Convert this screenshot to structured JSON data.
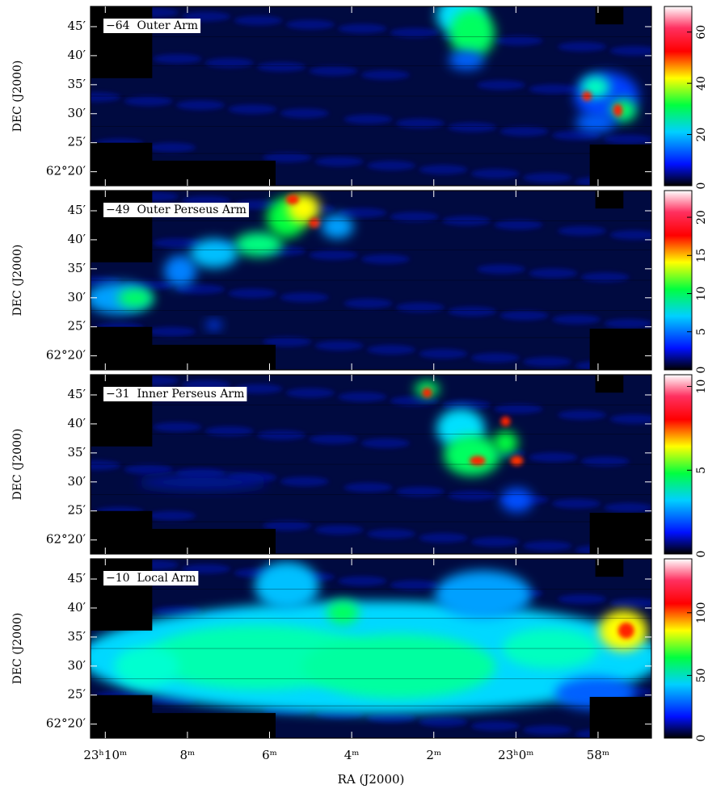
{
  "chart_data": [
    {
      "type": "heatmap",
      "annotation": "−64  Outer Arm",
      "ylabel": "DEC (J2000)",
      "xlim": [
        1390.36,
        1376.7
      ],
      "ylim": [
        62.293,
        62.808
      ],
      "yticks": [
        {
          "value": 62.3333,
          "label": "62°20′"
        },
        {
          "value": 62.4167,
          "label": "25′"
        },
        {
          "value": 62.5,
          "label": "30′"
        },
        {
          "value": 62.5833,
          "label": "35′"
        },
        {
          "value": 62.6667,
          "label": "40′"
        },
        {
          "value": 62.75,
          "label": "45′"
        }
      ],
      "zlim": [
        0,
        70
      ],
      "zticks": [
        0,
        20,
        40,
        60
      ],
      "colormap": "rainbow"
    },
    {
      "type": "heatmap",
      "annotation": "−49  Outer Perseus Arm",
      "ylabel": "DEC (J2000)",
      "xlim": [
        1390.36,
        1376.7
      ],
      "ylim": [
        62.293,
        62.808
      ],
      "yticks": [
        {
          "value": 62.3333,
          "label": "62°20′"
        },
        {
          "value": 62.4167,
          "label": "25′"
        },
        {
          "value": 62.5,
          "label": "30′"
        },
        {
          "value": 62.5833,
          "label": "35′"
        },
        {
          "value": 62.6667,
          "label": "40′"
        },
        {
          "value": 62.75,
          "label": "45′"
        }
      ],
      "zlim": [
        0,
        23.5
      ],
      "zticks": [
        0,
        5,
        10,
        15,
        20
      ],
      "colormap": "rainbow"
    },
    {
      "type": "heatmap",
      "annotation": "−31  Inner Perseus Arm",
      "ylabel": "DEC (J2000)",
      "xlim": [
        1390.36,
        1376.7
      ],
      "ylim": [
        62.293,
        62.808
      ],
      "yticks": [
        {
          "value": 62.3333,
          "label": "62°20′"
        },
        {
          "value": 62.4167,
          "label": "25′"
        },
        {
          "value": 62.5,
          "label": "30′"
        },
        {
          "value": 62.5833,
          "label": "35′"
        },
        {
          "value": 62.6667,
          "label": "40′"
        },
        {
          "value": 62.75,
          "label": "45′"
        }
      ],
      "zlim": [
        0,
        10.7
      ],
      "zticks": [
        0,
        5,
        10
      ],
      "colormap": "rainbow"
    },
    {
      "type": "heatmap",
      "annotation": "−10  Local Arm",
      "ylabel": "DEC (J2000)",
      "xlabel": "RA (J2000)",
      "xlim": [
        1390.36,
        1376.7
      ],
      "ylim": [
        62.293,
        62.808
      ],
      "xticks": [
        {
          "value": 1390,
          "label": "23ʰ10ᵐ"
        },
        {
          "value": 1388,
          "label": "8ᵐ"
        },
        {
          "value": 1386,
          "label": "6ᵐ"
        },
        {
          "value": 1384,
          "label": "4ᵐ"
        },
        {
          "value": 1382,
          "label": "2ᵐ"
        },
        {
          "value": 1380,
          "label": "23ʰ0ᵐ"
        },
        {
          "value": 1378,
          "label": "58ᵐ"
        }
      ],
      "yticks": [
        {
          "value": 62.3333,
          "label": "62°20′"
        },
        {
          "value": 62.4167,
          "label": "25′"
        },
        {
          "value": 62.5,
          "label": "30′"
        },
        {
          "value": 62.5833,
          "label": "35′"
        },
        {
          "value": 62.6667,
          "label": "40′"
        },
        {
          "value": 62.75,
          "label": "45′"
        }
      ],
      "zlim": [
        0,
        143
      ],
      "zticks": [
        0,
        50,
        100
      ],
      "colormap": "rainbow"
    }
  ]
}
